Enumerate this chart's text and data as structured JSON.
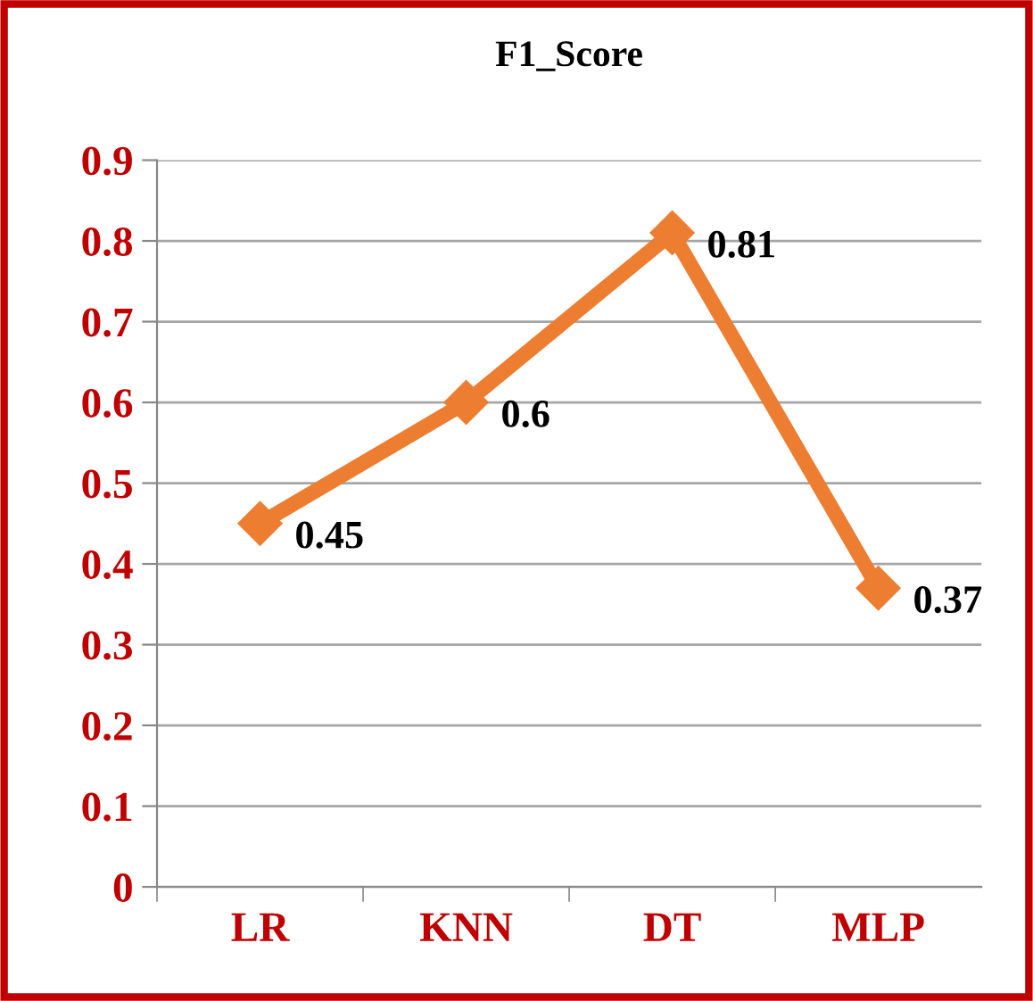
{
  "chart_data": {
    "type": "line",
    "title": "F1_Score",
    "categories": [
      "LR",
      "KNN",
      "DT",
      "MLP"
    ],
    "series": [
      {
        "color": "#ed7d31",
        "values": [
          0.45,
          0.6,
          0.81,
          0.37
        ]
      }
    ],
    "ylim": [
      0,
      0.9
    ],
    "yticks": [
      0,
      0.1,
      0.2,
      0.3,
      0.4,
      0.5,
      0.6,
      0.7,
      0.8,
      0.9
    ],
    "grid": "y",
    "legend": false,
    "marker": "diamond",
    "line_style": "solid",
    "data_labels": true
  }
}
